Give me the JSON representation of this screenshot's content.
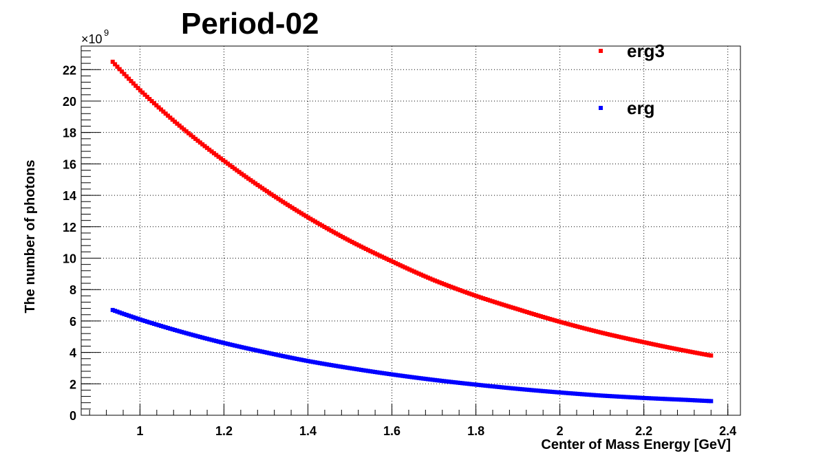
{
  "chart_data": {
    "type": "scatter",
    "title": "Period-02",
    "xlabel": "Center of Mass Energy [GeV]",
    "ylabel": "The number of photons",
    "y_multiplier": "×10",
    "y_multiplier_exp": "9",
    "xlim": [
      0.86,
      2.43
    ],
    "ylim": [
      0,
      23.5
    ],
    "grid": true,
    "legend_position": "top-right",
    "x_ticks": [
      "1",
      "1.2",
      "1.4",
      "1.6",
      "1.8",
      "2",
      "2.2",
      "2.4"
    ],
    "y_ticks": [
      "0",
      "2",
      "4",
      "6",
      "8",
      "10",
      "12",
      "14",
      "16",
      "18",
      "20",
      "22"
    ],
    "series": [
      {
        "name": "erg3",
        "color": "#ff0000",
        "x": [
          0.935,
          1.0,
          1.1,
          1.2,
          1.3,
          1.4,
          1.5,
          1.6,
          1.7,
          1.8,
          1.9,
          2.0,
          2.1,
          2.2,
          2.3,
          2.36
        ],
        "y": [
          22.5,
          20.7,
          18.3,
          16.2,
          14.3,
          12.6,
          11.1,
          9.8,
          8.6,
          7.6,
          6.75,
          5.95,
          5.25,
          4.65,
          4.1,
          3.8
        ]
      },
      {
        "name": "erg",
        "color": "#0000ff",
        "x": [
          0.935,
          1.0,
          1.1,
          1.2,
          1.3,
          1.4,
          1.5,
          1.6,
          1.7,
          1.8,
          1.9,
          2.0,
          2.1,
          2.2,
          2.3,
          2.36
        ],
        "y": [
          6.7,
          6.1,
          5.3,
          4.6,
          4.0,
          3.45,
          3.0,
          2.6,
          2.25,
          1.95,
          1.68,
          1.45,
          1.25,
          1.1,
          0.98,
          0.9
        ]
      }
    ]
  }
}
